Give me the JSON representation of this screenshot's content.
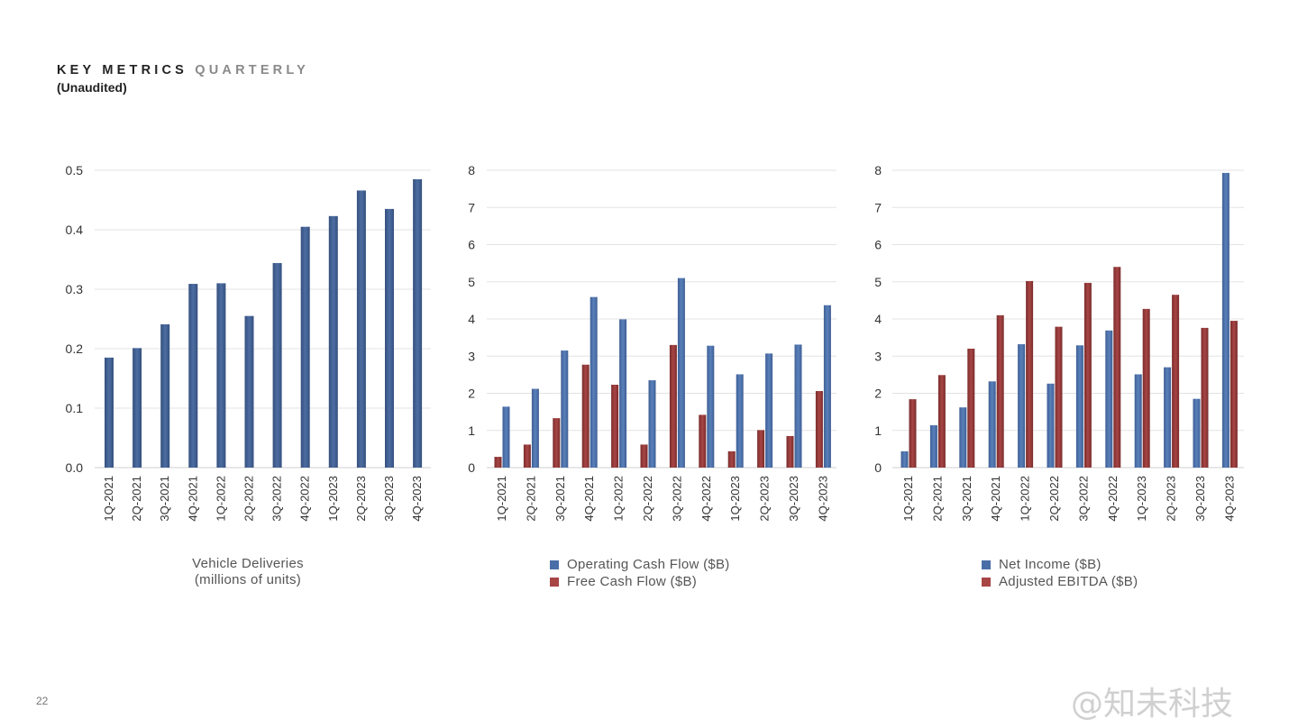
{
  "header": {
    "title_a": "KEY METRICS",
    "title_b": "QUARTERLY",
    "subtitle": "(Unaudited)"
  },
  "page_number": "22",
  "watermark": "@知未科技",
  "colors": {
    "blue": "#4a6ea8",
    "red": "#8b3535",
    "bar_dark": "#3d5a8a",
    "grid": "#e3e3e3"
  },
  "chart_data": [
    {
      "type": "bar",
      "caption_line1": "Vehicle Deliveries",
      "caption_line2": "(millions of units)",
      "categories": [
        "1Q-2021",
        "2Q-2021",
        "3Q-2021",
        "4Q-2021",
        "1Q-2022",
        "2Q-2022",
        "3Q-2022",
        "4Q-2022",
        "1Q-2023",
        "2Q-2023",
        "3Q-2023",
        "4Q-2023"
      ],
      "series": [
        {
          "values": [
            0.185,
            0.201,
            0.241,
            0.309,
            0.31,
            0.255,
            0.344,
            0.405,
            0.423,
            0.466,
            0.435,
            0.485
          ]
        }
      ],
      "ylim": [
        0,
        0.5
      ],
      "yticks": [
        "0.0",
        "0.1",
        "0.2",
        "0.3",
        "0.4",
        "0.5"
      ],
      "grid": true
    },
    {
      "type": "bar",
      "categories": [
        "1Q-2021",
        "2Q-2021",
        "3Q-2021",
        "4Q-2021",
        "1Q-2022",
        "2Q-2022",
        "3Q-2022",
        "4Q-2022",
        "1Q-2023",
        "2Q-2023",
        "3Q-2023",
        "4Q-2023"
      ],
      "series": [
        {
          "name": "Free Cash Flow ($B)",
          "values": [
            0.29,
            0.62,
            1.33,
            2.77,
            2.23,
            0.62,
            3.3,
            1.42,
            0.44,
            1.01,
            0.85,
            2.06
          ]
        },
        {
          "name": "Operating Cash Flow ($B)",
          "values": [
            1.64,
            2.12,
            3.15,
            4.59,
            3.99,
            2.35,
            5.1,
            3.28,
            2.51,
            3.07,
            3.31,
            4.37
          ]
        }
      ],
      "legend": [
        "Operating Cash Flow ($B)",
        "Free Cash Flow ($B)"
      ],
      "ylim": [
        0,
        8
      ],
      "yticks": [
        "0",
        "1",
        "2",
        "3",
        "4",
        "5",
        "6",
        "7",
        "8"
      ],
      "grid": true
    },
    {
      "type": "bar",
      "categories": [
        "1Q-2021",
        "2Q-2021",
        "3Q-2021",
        "4Q-2021",
        "1Q-2022",
        "2Q-2022",
        "3Q-2022",
        "4Q-2022",
        "1Q-2023",
        "2Q-2023",
        "3Q-2023",
        "4Q-2023"
      ],
      "series": [
        {
          "name": "Net Income ($B)",
          "values": [
            0.44,
            1.14,
            1.62,
            2.32,
            3.32,
            2.26,
            3.29,
            3.69,
            2.51,
            2.7,
            1.85,
            7.93
          ]
        },
        {
          "name": "Adjusted EBITDA ($B)",
          "values": [
            1.84,
            2.49,
            3.2,
            4.1,
            5.02,
            3.79,
            4.97,
            5.4,
            4.27,
            4.65,
            3.76,
            3.95
          ]
        }
      ],
      "legend": [
        "Net Income ($B)",
        "Adjusted EBITDA ($B)"
      ],
      "ylim": [
        0,
        8
      ],
      "yticks": [
        "0",
        "1",
        "2",
        "3",
        "4",
        "5",
        "6",
        "7",
        "8"
      ],
      "grid": true
    }
  ]
}
